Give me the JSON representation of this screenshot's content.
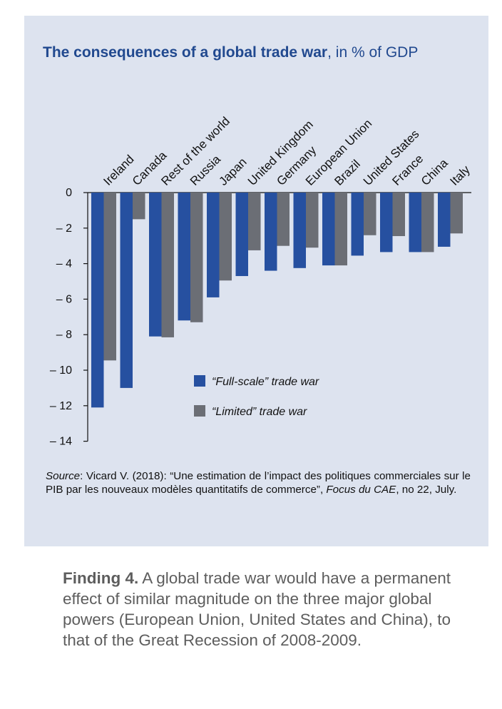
{
  "chart_data": {
    "type": "bar",
    "title_bold": "The consequences of a global trade war",
    "title_rest": ", in % of GDP",
    "categories": [
      "Ireland",
      "Canada",
      "Rest of the world",
      "Russia",
      "Japan",
      "United Kingdom",
      "Germany",
      "European Union",
      "Brazil",
      "United States",
      "France",
      "China",
      "Italy"
    ],
    "series": [
      {
        "name": "“Full-scale” trade war",
        "color": "#2650a0",
        "values": [
          -12.1,
          -11.0,
          -8.1,
          -7.2,
          -5.9,
          -4.7,
          -4.4,
          -4.25,
          -4.1,
          -3.55,
          -3.35,
          -3.35,
          -3.05
        ]
      },
      {
        "name": "“Limited” trade war",
        "color": "#6b6e75",
        "values": [
          -9.45,
          -1.5,
          -8.15,
          -7.3,
          -4.95,
          -3.25,
          -3.0,
          -3.1,
          -4.1,
          -2.4,
          -2.45,
          -3.35,
          -2.3
        ]
      }
    ],
    "y_ticks": [
      "0",
      "– 2",
      "– 4",
      "– 6",
      "– 8",
      "– 10",
      "– 12",
      "– 14"
    ],
    "ylim": [
      -14,
      0
    ],
    "legend_position": "lower-right inside plot",
    "grid": false
  },
  "source": {
    "label": "Source",
    "text_1": ": Vicard V. (2018): “Une estimation de l’impact des politiques commerciales sur le PIB par les nouveaux modèles quantitatifs de commerce”, ",
    "journal": "Focus du CAE",
    "text_2": ", no 22, July."
  },
  "finding": {
    "lead": "Finding 4.",
    "text": " A global trade war would have a permanent effect of similar magnitude on the three major global powers (European Union, United States and China), to that of the Great Recession of 2008-2009."
  },
  "colors": {
    "panel": "#dde3ef",
    "title": "#21498f",
    "full_scale": "#2650a0",
    "limited": "#6b6e75"
  }
}
